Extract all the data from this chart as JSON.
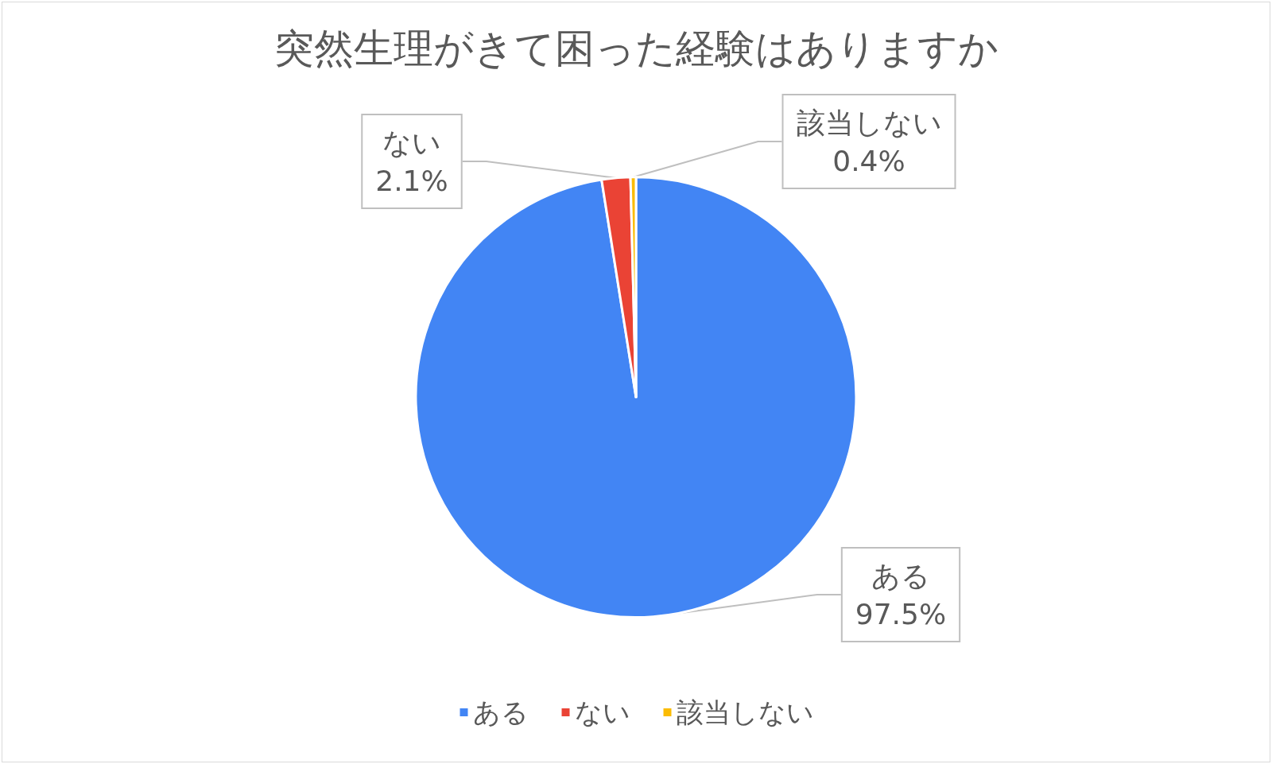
{
  "chart_data": {
    "type": "pie",
    "title": "突然生理がきて困った経験はありますか",
    "categories": [
      "ある",
      "ない",
      "該当しない"
    ],
    "values": [
      97.5,
      2.1,
      0.4
    ],
    "value_labels": [
      "97.5%",
      "2.1%",
      "0.4%"
    ],
    "colors": [
      "#4285f4",
      "#ea4335",
      "#fbbc04"
    ],
    "legend": "bottom"
  }
}
